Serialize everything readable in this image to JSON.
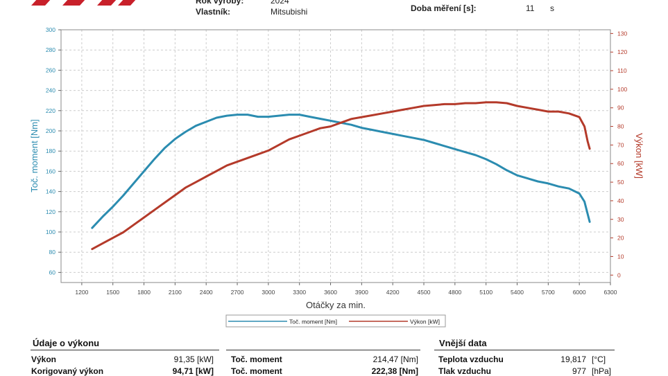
{
  "header": {
    "rok_label": "Rok výroby:",
    "rok_value": "2024",
    "vlastnik_label": "Vlastník:",
    "vlastnik_value": "Mitsubishi",
    "doba_label": "Doba měření [s]:",
    "doba_value": "11",
    "doba_unit": "s"
  },
  "colors": {
    "torque": "#2b8cb0",
    "power": "#b43a2a",
    "grid": "#cccccc",
    "brand": "#c8202a"
  },
  "chart_data": {
    "type": "line",
    "xlabel": "Otáčky za min.",
    "ylabel": "Toč. moment [Nm]",
    "y2label": "Výkon [kW]",
    "xlim": [
      1000,
      6300
    ],
    "ylim": [
      50,
      300
    ],
    "y2lim": [
      -4,
      132
    ],
    "x_ticks": [
      "1200",
      "1500",
      "1800",
      "2100",
      "2400",
      "2700",
      "3000",
      "3300",
      "3600",
      "3900",
      "4200",
      "4500",
      "4800",
      "5100",
      "5400",
      "5700",
      "6000",
      "6300"
    ],
    "y_ticks": [
      "60",
      "80",
      "100",
      "120",
      "140",
      "160",
      "180",
      "200",
      "220",
      "240",
      "260",
      "280",
      "300"
    ],
    "y2_ticks": [
      "0",
      "10",
      "20",
      "30",
      "40",
      "50",
      "60",
      "70",
      "80",
      "90",
      "100",
      "110",
      "120",
      "130"
    ],
    "grid": true,
    "legend": "bottom",
    "series": [
      {
        "name": "Toč. moment [Nm]",
        "axis": "left",
        "x": [
          1300,
          1400,
          1500,
          1600,
          1700,
          1800,
          1900,
          2000,
          2100,
          2200,
          2300,
          2400,
          2500,
          2600,
          2700,
          2800,
          2900,
          3000,
          3100,
          3200,
          3300,
          3400,
          3500,
          3600,
          3700,
          3800,
          3900,
          4000,
          4100,
          4200,
          4300,
          4400,
          4500,
          4600,
          4700,
          4800,
          4900,
          5000,
          5100,
          5200,
          5300,
          5400,
          5500,
          5600,
          5700,
          5800,
          5900,
          6000,
          6050,
          6080,
          6100
        ],
        "values": [
          104,
          115,
          125,
          136,
          148,
          160,
          172,
          183,
          192,
          199,
          205,
          209,
          213,
          215,
          216,
          216,
          214,
          214,
          215,
          216,
          216,
          214,
          212,
          210,
          208,
          206,
          203,
          201,
          199,
          197,
          195,
          193,
          191,
          188,
          185,
          182,
          179,
          176,
          172,
          167,
          161,
          156,
          153,
          150,
          148,
          145,
          143,
          138,
          130,
          118,
          110
        ]
      },
      {
        "name": "Výkon [kW]",
        "axis": "right",
        "x": [
          1300,
          1400,
          1500,
          1600,
          1700,
          1800,
          1900,
          2000,
          2100,
          2200,
          2300,
          2400,
          2500,
          2600,
          2700,
          2800,
          2900,
          3000,
          3100,
          3200,
          3300,
          3400,
          3500,
          3600,
          3700,
          3800,
          3900,
          4000,
          4100,
          4200,
          4300,
          4400,
          4500,
          4600,
          4700,
          4800,
          4900,
          5000,
          5100,
          5200,
          5300,
          5400,
          5500,
          5600,
          5700,
          5800,
          5900,
          6000,
          6050,
          6080,
          6100
        ],
        "values": [
          14,
          17,
          20,
          23,
          27,
          31,
          35,
          39,
          43,
          47,
          50,
          53,
          56,
          59,
          61,
          63,
          65,
          67,
          70,
          73,
          75,
          77,
          79,
          80,
          82,
          84,
          85,
          86,
          87,
          88,
          89,
          90,
          91,
          91.5,
          92,
          92,
          92.5,
          92.5,
          93,
          93,
          92.5,
          91,
          90,
          89,
          88,
          88,
          87,
          85,
          80,
          72,
          68
        ]
      }
    ]
  },
  "table": {
    "section_left": "Údaje o výkonu",
    "section_right": "Vnější data",
    "rows": [
      {
        "l_label": "Výkon",
        "l_value": "91,35 [kW]",
        "m_label": "Toč. moment",
        "m_value": "214,47 [Nm]",
        "r_label": "Teplota vzduchu",
        "r_value": "19,817",
        "r_unit": "[°C]"
      },
      {
        "l_label": "Korigovaný výkon",
        "l_value": "94,71 [kW]",
        "m_label": "Toč. moment",
        "m_value": "222,38 [Nm]",
        "r_label": "Tlak vzduchu",
        "r_value": "977",
        "r_unit": "[hPa]"
      }
    ]
  }
}
